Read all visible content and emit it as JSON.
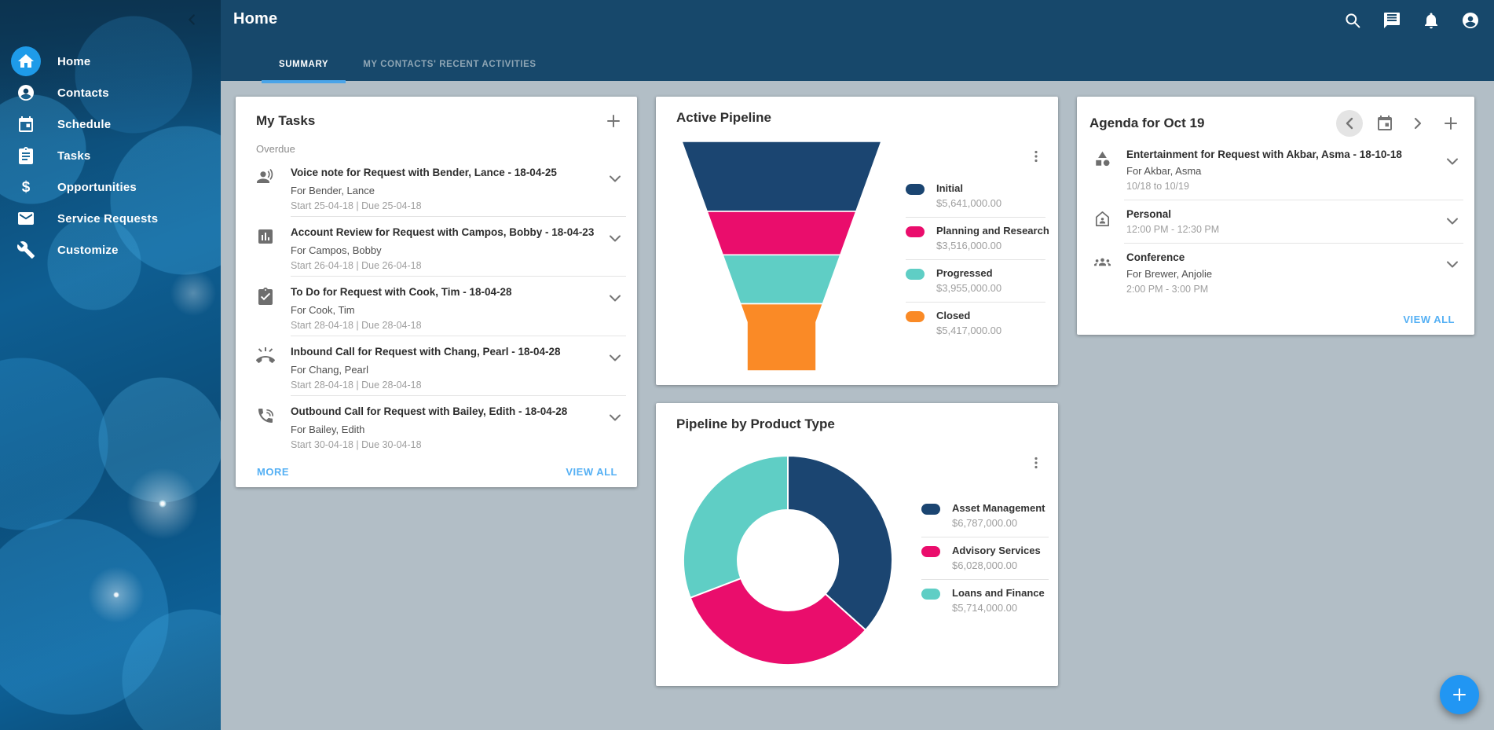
{
  "theme": {
    "header_bg": "#17486B",
    "content_bg": "#B2BEC6",
    "active_item_bg": "#1E9BE9",
    "tab_underline": "#4AA4E8",
    "link_color": "#55B0F4",
    "fab_bg": "#2196F3"
  },
  "header": {
    "title": "Home",
    "tabs": [
      {
        "label": "SUMMARY",
        "active": true
      },
      {
        "label": "MY CONTACTS' RECENT ACTIVITIES",
        "active": false
      }
    ],
    "icons": [
      "search-icon",
      "chat-icon",
      "notifications-icon",
      "account-icon"
    ]
  },
  "sidebar": {
    "collapse_icon": "chevron-left-icon",
    "items": [
      {
        "label": "Home",
        "icon": "home-icon",
        "active": true
      },
      {
        "label": "Contacts",
        "icon": "contacts-icon",
        "active": false
      },
      {
        "label": "Schedule",
        "icon": "schedule-icon",
        "active": false
      },
      {
        "label": "Tasks",
        "icon": "tasks-icon",
        "active": false
      },
      {
        "label": "Opportunities",
        "icon": "dollar-icon",
        "active": false
      },
      {
        "label": "Service Requests",
        "icon": "mail-icon",
        "active": false
      },
      {
        "label": "Customize",
        "icon": "wrench-icon",
        "active": false
      }
    ]
  },
  "cards": {
    "my_tasks": {
      "title": "My Tasks",
      "add_icon": "plus-icon",
      "section_label": "Overdue",
      "more_label": "MORE",
      "view_all_label": "VIEW ALL",
      "tasks": [
        {
          "icon": "voice-note-icon",
          "title": "Voice note for Request with Bender, Lance - 18-04-25",
          "subtitle": "For Bender, Lance",
          "dates": "Start 25-04-18 | Due 25-04-18"
        },
        {
          "icon": "account-review-icon",
          "title": "Account Review for Request with Campos, Bobby - 18-04-23",
          "subtitle": "For Campos, Bobby",
          "dates": "Start 26-04-18 | Due 26-04-18"
        },
        {
          "icon": "todo-icon",
          "title": "To Do for Request with Cook, Tim - 18-04-28",
          "subtitle": "For Cook, Tim",
          "dates": "Start 28-04-18 | Due 28-04-18"
        },
        {
          "icon": "inbound-call-icon",
          "title": "Inbound Call for Request with Chang, Pearl - 18-04-28",
          "subtitle": "For Chang, Pearl",
          "dates": "Start 28-04-18 | Due 28-04-18"
        },
        {
          "icon": "outbound-call-icon",
          "title": "Outbound Call for Request with Bailey, Edith - 18-04-28",
          "subtitle": "For Bailey, Edith",
          "dates": "Start 30-04-18 | Due 30-04-18"
        }
      ]
    },
    "active_pipeline": {
      "title": "Active Pipeline",
      "menu_icon": "kebab-icon"
    },
    "product_pipeline": {
      "title": "Pipeline by Product Type",
      "menu_icon": "kebab-icon"
    },
    "agenda": {
      "title": "Agenda for Oct 19",
      "controls": [
        "chevron-left-icon",
        "calendar-icon",
        "chevron-right-icon",
        "plus-icon"
      ],
      "view_all_label": "VIEW ALL",
      "items": [
        {
          "icon": "category-icon",
          "title": "Entertainment for Request with Akbar, Asma - 18-10-18",
          "subtitle": "For Akbar, Asma",
          "time": "10/18 to 10/19"
        },
        {
          "icon": "home-event-icon",
          "title": "Personal",
          "subtitle": "",
          "time": "12:00 PM - 12:30 PM"
        },
        {
          "icon": "conference-icon",
          "title": "Conference",
          "subtitle": "For Brewer, Anjolie",
          "time": "2:00 PM - 3:00 PM"
        }
      ]
    }
  },
  "fab": {
    "icon": "plus-icon"
  },
  "chart_data": [
    {
      "type": "funnel",
      "title": "Active Pipeline",
      "legend_position": "right",
      "stages": [
        {
          "label": "Initial",
          "value": 5641000,
          "display": "$5,641,000.00",
          "color": "#1B4571"
        },
        {
          "label": "Planning and Research",
          "value": 3516000,
          "display": "$3,516,000.00",
          "color": "#EA0D6C"
        },
        {
          "label": "Progressed",
          "value": 3955000,
          "display": "$3,955,000.00",
          "color": "#5FCEC5"
        },
        {
          "label": "Closed",
          "value": 5417000,
          "display": "$5,417,000.00",
          "color": "#FA8A26"
        }
      ]
    },
    {
      "type": "donut",
      "title": "Pipeline by Product Type",
      "legend_position": "right",
      "start_angle_deg": 0,
      "slices": [
        {
          "label": "Asset Management",
          "value": 6787000,
          "display": "$6,787,000.00",
          "color": "#1B4571"
        },
        {
          "label": "Advisory Services",
          "value": 6028000,
          "display": "$6,028,000.00",
          "color": "#EA0D6C"
        },
        {
          "label": "Loans and Finance",
          "value": 5714000,
          "display": "$5,714,000.00",
          "color": "#5FCEC5"
        }
      ]
    }
  ]
}
